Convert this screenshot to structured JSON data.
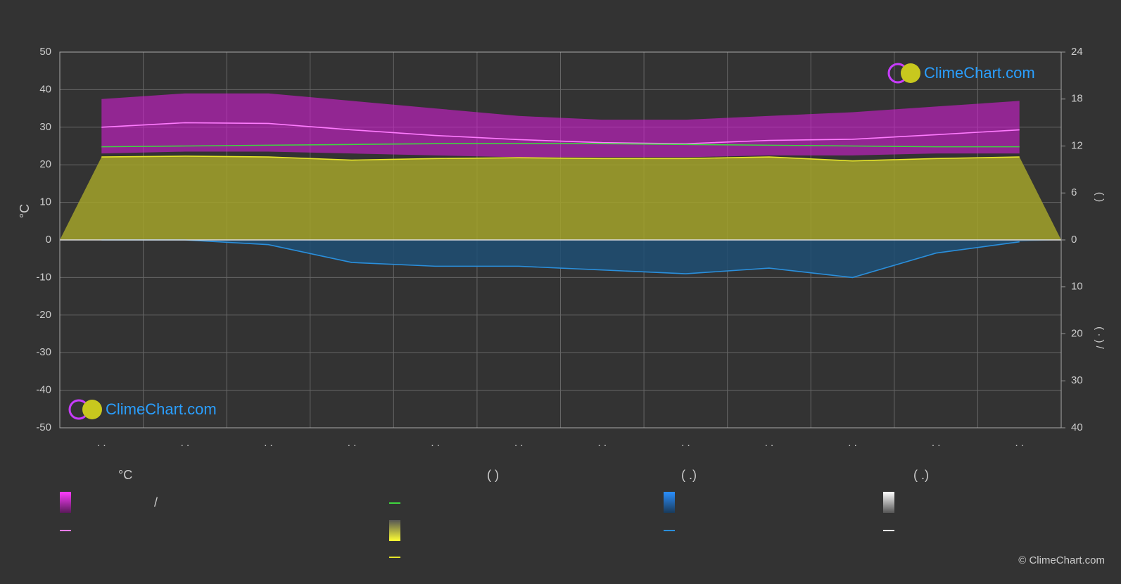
{
  "chart_data": {
    "type": "line",
    "categories": [
      ". .",
      ". .",
      ". .",
      ". .",
      ". .",
      ". .",
      ". .",
      ". .",
      ". .",
      ". .",
      ". .",
      ". ."
    ],
    "y_label": "°C",
    "y2_label": "(   )",
    "y3_label": "( · ) /",
    "ylim": [
      -50,
      50
    ],
    "yticks": [
      -50,
      -40,
      -30,
      -20,
      -10,
      0,
      10,
      20,
      30,
      40,
      50
    ],
    "y2lim": [
      0,
      24
    ],
    "y2ticks": [
      0,
      6,
      12,
      18,
      24
    ],
    "y3lim": [
      0,
      40
    ],
    "y3ticks": [
      10,
      20,
      30,
      40
    ],
    "grid": true,
    "temp_band": {
      "color": "#d21ed2",
      "high": [
        37.5,
        39,
        39,
        37,
        35,
        33,
        32,
        32,
        33,
        34,
        35.5,
        37
      ],
      "low": [
        23,
        23.5,
        23.5,
        23,
        22.5,
        22,
        22,
        22,
        22.5,
        22.5,
        23,
        23
      ]
    },
    "series": [
      {
        "color": "#ff7cff",
        "axis": "y",
        "values": [
          30,
          31.2,
          31,
          29.3,
          27.8,
          26.7,
          25.9,
          25.6,
          26.5,
          26.8,
          28,
          29.3
        ]
      },
      {
        "color": "#3fd63f",
        "axis": "y2",
        "values": [
          11.9,
          12.0,
          12.1,
          12.2,
          12.3,
          12.3,
          12.3,
          12.2,
          12.1,
          12.0,
          11.9,
          11.9
        ]
      },
      {
        "color": "#e6e62a",
        "axis": "y2",
        "fill": "#a3a32a",
        "values": [
          10.6,
          10.7,
          10.6,
          10.2,
          10.4,
          10.5,
          10.4,
          10.4,
          10.6,
          10.1,
          10.4,
          10.6
        ]
      },
      {
        "color": "#2a8fdc",
        "axis": "y3",
        "fill": "#1f4f74",
        "values": [
          0,
          0,
          1,
          4.8,
          5.6,
          5.6,
          6.4,
          7.2,
          6,
          8,
          2.8,
          0.4
        ]
      }
    ],
    "legend_headers": [
      "°C",
      "(          )",
      "(   .)",
      "(   .)"
    ],
    "legend_slash": "/",
    "logo": "ClimeChart.com",
    "copyright": "© ClimeChart.com"
  }
}
